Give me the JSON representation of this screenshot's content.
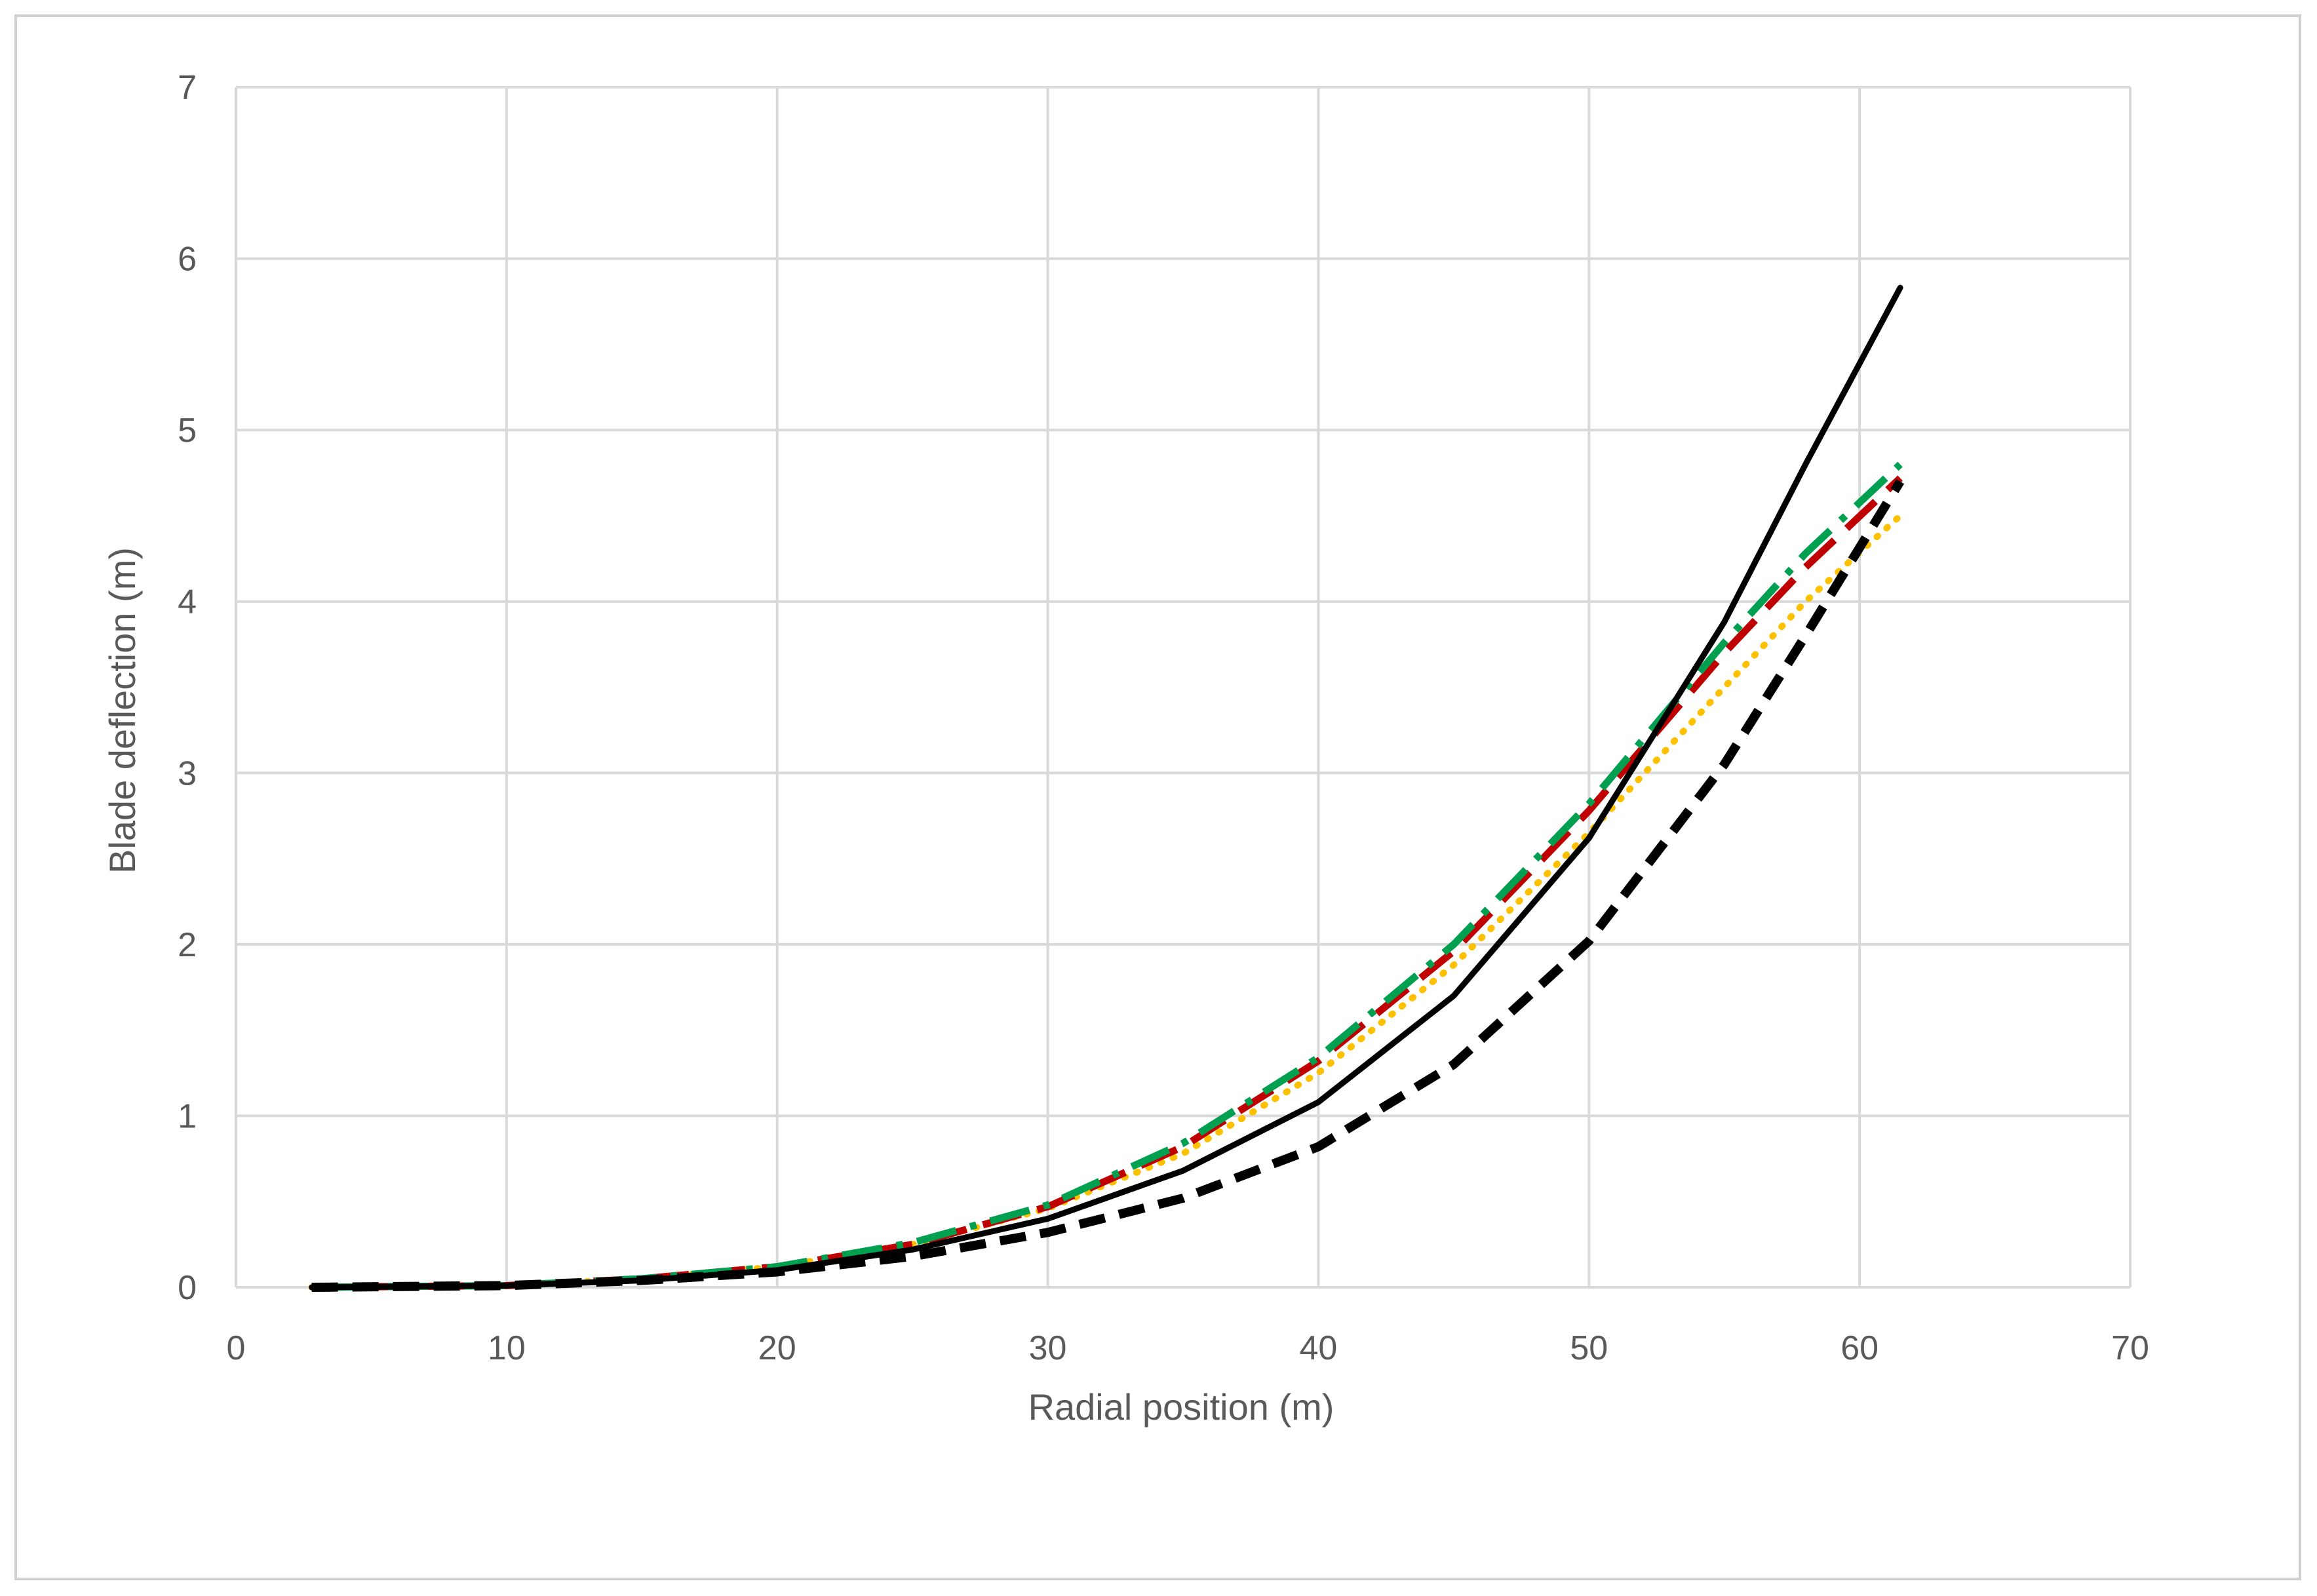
{
  "chart_data": {
    "type": "line",
    "title": "",
    "xlabel": "Radial position (m)",
    "ylabel": "Blade deflection (m)",
    "xlim": [
      0,
      70
    ],
    "ylim": [
      0,
      7
    ],
    "xticks": [
      0,
      10,
      20,
      30,
      40,
      50,
      60,
      70
    ],
    "yticks": [
      0,
      1,
      2,
      3,
      4,
      5,
      6,
      7
    ],
    "grid": true,
    "legend": "none",
    "series": [
      {
        "style": "solid",
        "color": "#000000",
        "x": [
          2.8,
          10,
          15,
          20,
          25,
          30,
          35,
          40,
          45,
          50,
          55,
          58,
          61.5
        ],
        "y": [
          0,
          0.01,
          0.04,
          0.1,
          0.22,
          0.4,
          0.68,
          1.08,
          1.7,
          2.62,
          3.88,
          4.8,
          5.83
        ]
      },
      {
        "style": "dashed",
        "color": "#000000",
        "x": [
          2.8,
          10,
          15,
          20,
          25,
          30,
          35,
          40,
          45,
          50,
          55,
          58,
          61.5
        ],
        "y": [
          0,
          0.01,
          0.04,
          0.09,
          0.18,
          0.32,
          0.52,
          0.82,
          1.3,
          2.02,
          3.05,
          3.8,
          4.7
        ]
      },
      {
        "style": "long-dash",
        "color": "#c00000",
        "x": [
          2.8,
          10,
          15,
          20,
          25,
          30,
          35,
          40,
          45,
          50,
          55,
          58,
          61.5
        ],
        "y": [
          0,
          0.01,
          0.05,
          0.12,
          0.25,
          0.47,
          0.82,
          1.32,
          1.96,
          2.78,
          3.7,
          4.2,
          4.72
        ]
      },
      {
        "style": "dash-dot",
        "color": "#00a050",
        "x": [
          2.8,
          10,
          15,
          20,
          25,
          30,
          35,
          40,
          45,
          50,
          55,
          58,
          61.5
        ],
        "y": [
          0,
          0.01,
          0.05,
          0.12,
          0.26,
          0.48,
          0.84,
          1.34,
          2.0,
          2.82,
          3.76,
          4.28,
          4.8
        ]
      },
      {
        "style": "dotted",
        "color": "#ffc000",
        "x": [
          2.8,
          10,
          15,
          20,
          25,
          30,
          35,
          40,
          45,
          50,
          55,
          58,
          61.5
        ],
        "y": [
          0,
          0.01,
          0.05,
          0.12,
          0.25,
          0.46,
          0.78,
          1.25,
          1.88,
          2.65,
          3.5,
          4.0,
          4.5
        ]
      }
    ]
  }
}
